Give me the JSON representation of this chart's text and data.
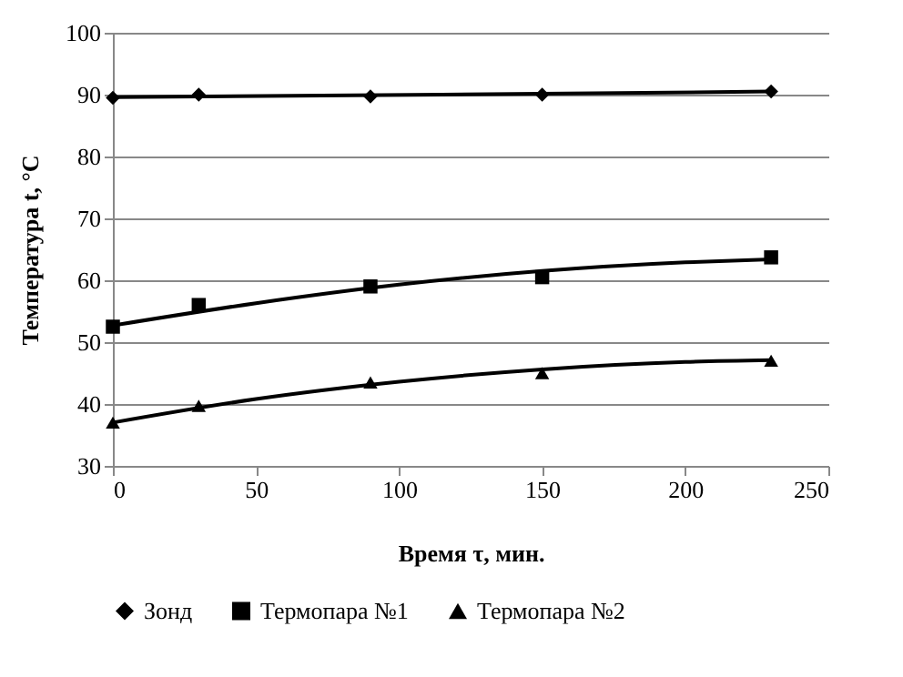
{
  "chart_data": {
    "type": "scatter",
    "xlabel": "Время τ, мин.",
    "ylabel": "Температура t, °C",
    "xlim": [
      0,
      250
    ],
    "xticks": [
      0,
      50,
      100,
      150,
      200,
      250
    ],
    "ylim": [
      30,
      100
    ],
    "yticks": [
      30,
      40,
      50,
      60,
      70,
      80,
      90,
      100
    ],
    "grid": "y",
    "legend": "bottom",
    "x": [
      0,
      30,
      90,
      150,
      230
    ],
    "series": [
      {
        "name": "Зонд",
        "color": "#000000",
        "marker": "diamond",
        "values": [
          89.5,
          90,
          89.7,
          90,
          90.5
        ]
      },
      {
        "name": "Термопара №1",
        "color": "#000000",
        "marker": "square",
        "values": [
          52.5,
          56,
          59,
          60.5,
          63.7
        ]
      },
      {
        "name": "Термопара №2",
        "color": "#000000",
        "marker": "triangle",
        "values": [
          37,
          39.7,
          43.5,
          45,
          47
        ]
      },
      {
        "type": "line",
        "color": "#000000",
        "marker": "none",
        "x": [
          0,
          115,
          230
        ],
        "values": [
          89.6,
          90,
          90.5
        ]
      },
      {
        "type": "line",
        "color": "#000000",
        "marker": "none",
        "x": [
          0,
          50,
          100,
          150,
          200,
          230
        ],
        "values": [
          52.7,
          56.3,
          59.3,
          61.5,
          62.9,
          63.4
        ]
      },
      {
        "type": "line",
        "color": "#000000",
        "marker": "none",
        "x": [
          0,
          50,
          100,
          150,
          200,
          230
        ],
        "values": [
          37,
          40.8,
          43.6,
          45.6,
          46.8,
          47.1
        ]
      }
    ]
  }
}
